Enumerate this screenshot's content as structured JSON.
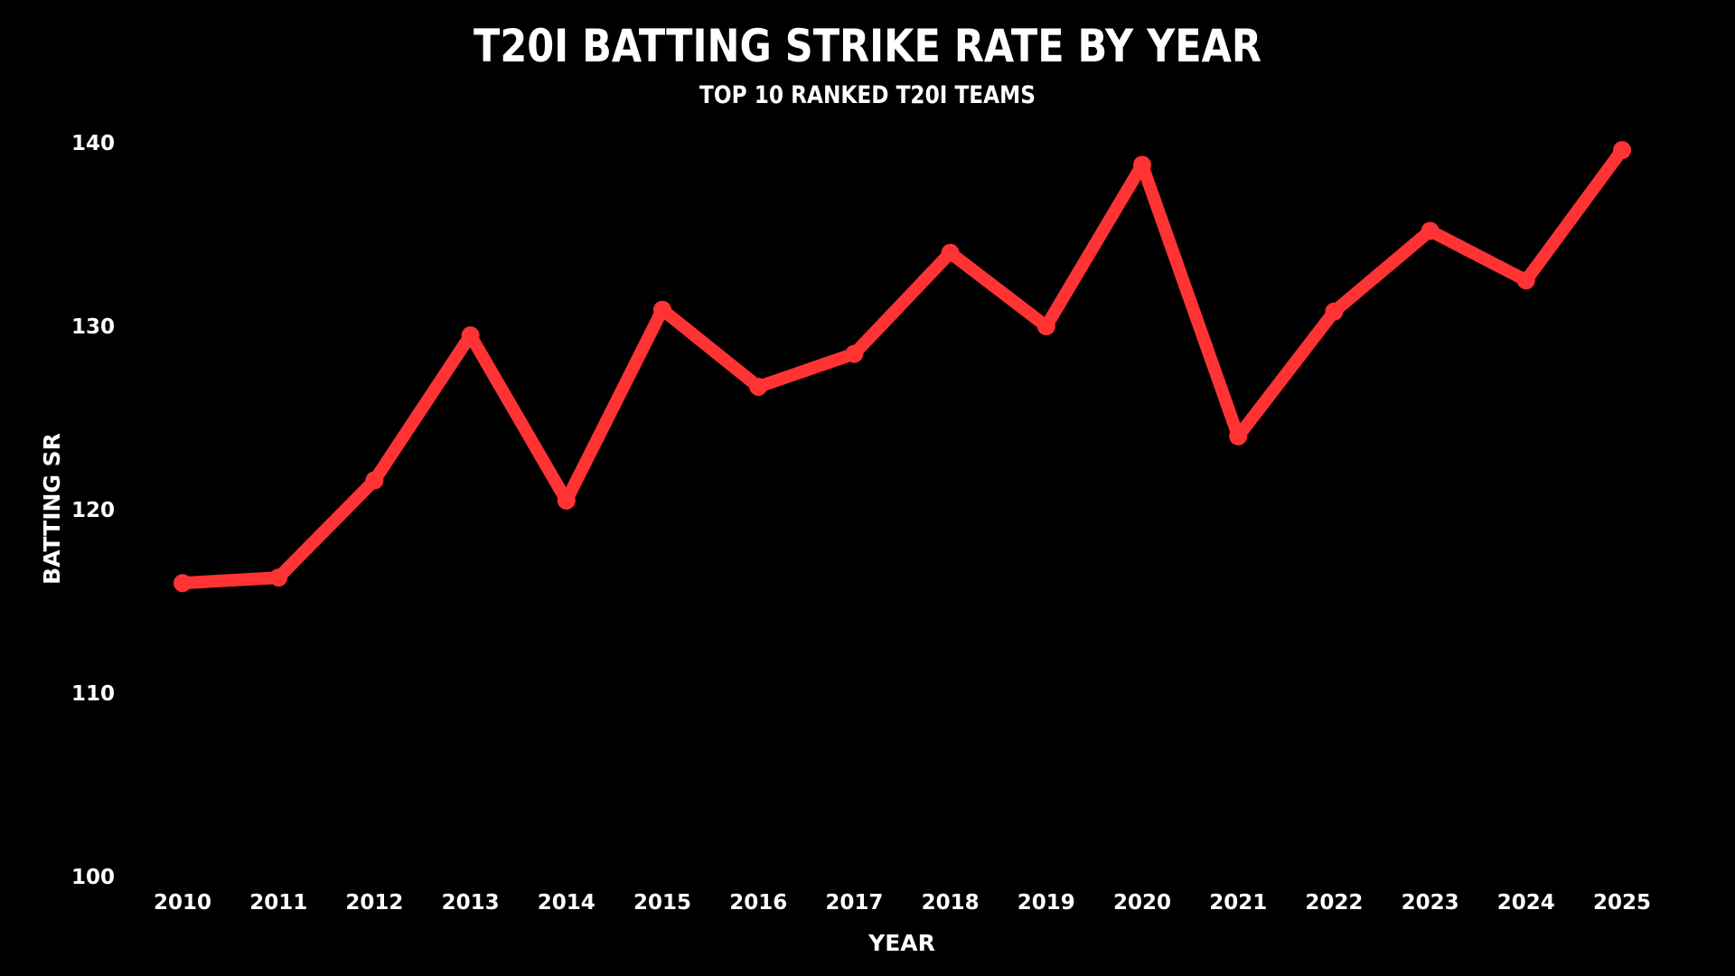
{
  "chart_data": {
    "type": "line",
    "title": "T20I BATTING STRIKE RATE BY YEAR",
    "subtitle": "TOP 10 RANKED T20I TEAMS",
    "xlabel": "YEAR",
    "ylabel": "BATTING SR",
    "categories": [
      "2010",
      "2011",
      "2012",
      "2013",
      "2014",
      "2015",
      "2016",
      "2017",
      "2018",
      "2019",
      "2020",
      "2021",
      "2022",
      "2023",
      "2024",
      "2025"
    ],
    "series": [
      {
        "name": "Batting SR",
        "values": [
          116.0,
          116.3,
          121.6,
          129.5,
          120.5,
          130.9,
          126.7,
          128.5,
          134.0,
          130.0,
          138.8,
          124.0,
          130.8,
          135.2,
          132.5,
          139.6
        ]
      }
    ],
    "ylim": [
      100,
      140
    ],
    "yticks": [
      100,
      110,
      120,
      130,
      140
    ],
    "grid": false,
    "legend": "none",
    "line_color": "#ff3333",
    "background": "#000000",
    "text_color": "#ffffff"
  }
}
